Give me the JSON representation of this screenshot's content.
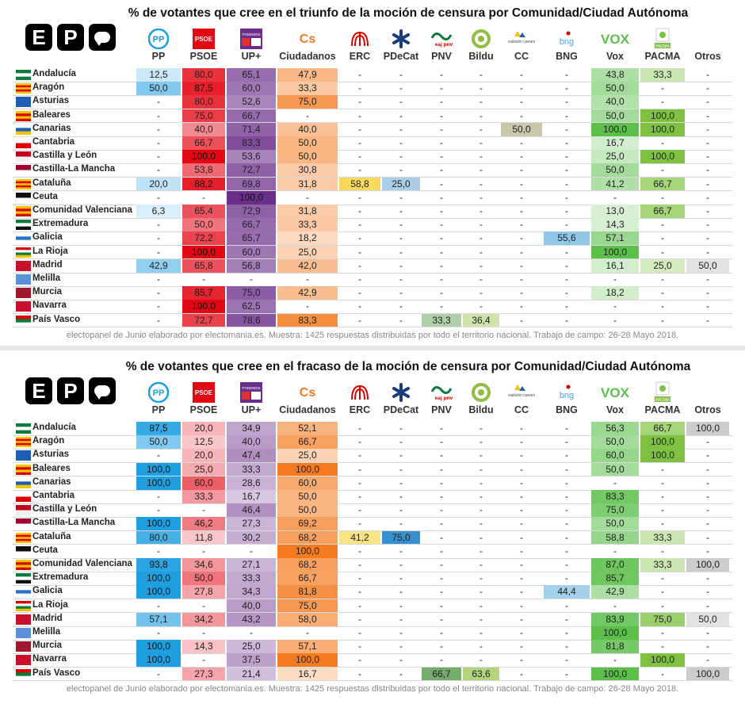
{
  "chart_data": [
    {
      "type": "table",
      "title": "% de votantes que cree en el triunfo de la moción de censura por Comunidad/Ciudad Autónoma",
      "footer": "electopanel de Junio elaborado por electomania.es. Muestra: 1425 respuestas distribuidas por todo el territorio nacional. Trabajo de campo: 26-28 Mayo 2018.",
      "columns": [
        "PP",
        "PSOE",
        "UP+",
        "Ciudadanos",
        "ERC",
        "PDeCat",
        "PNV",
        "Bildu",
        "CC",
        "BNG",
        "Vox",
        "PACMA",
        "Otros"
      ],
      "rows": [
        {
          "name": "Andalucía",
          "values": [
            "12,5",
            "80,0",
            "65,1",
            "47,9",
            "-",
            "-",
            "-",
            "-",
            "-",
            "-",
            "43,8",
            "33,3",
            "-"
          ]
        },
        {
          "name": "Aragón",
          "values": [
            "50,0",
            "87,5",
            "60,0",
            "33,3",
            "-",
            "-",
            "-",
            "-",
            "-",
            "-",
            "50,0",
            "-",
            "-"
          ]
        },
        {
          "name": "Asturias",
          "values": [
            "-",
            "80,0",
            "52,6",
            "75,0",
            "-",
            "-",
            "-",
            "-",
            "-",
            "-",
            "40,0",
            "-",
            "-"
          ]
        },
        {
          "name": "Baleares",
          "values": [
            "-",
            "75,0",
            "66,7",
            "-",
            "-",
            "-",
            "-",
            "-",
            "-",
            "-",
            "50,0",
            "100,0",
            "-"
          ]
        },
        {
          "name": "Canarias",
          "values": [
            "-",
            "40,0",
            "71,4",
            "40,0",
            "-",
            "-",
            "-",
            "-",
            "50,0",
            "-",
            "100,0",
            "100,0",
            "-"
          ]
        },
        {
          "name": "Cantabria",
          "values": [
            "-",
            "66,7",
            "83,3",
            "50,0",
            "-",
            "-",
            "-",
            "-",
            "-",
            "-",
            "16,7",
            "-",
            "-"
          ]
        },
        {
          "name": "Castilla y León",
          "values": [
            "-",
            "100,0",
            "53,6",
            "50,0",
            "-",
            "-",
            "-",
            "-",
            "-",
            "-",
            "25,0",
            "100,0",
            "-"
          ]
        },
        {
          "name": "Castilla-La Mancha",
          "values": [
            "-",
            "53,8",
            "72,7",
            "30,8",
            "-",
            "-",
            "-",
            "-",
            "-",
            "-",
            "50,0",
            "-",
            "-"
          ]
        },
        {
          "name": "Cataluña",
          "values": [
            "20,0",
            "88,2",
            "69,8",
            "31,8",
            "58,8",
            "25,0",
            "-",
            "-",
            "-",
            "-",
            "41,2",
            "66,7",
            "-"
          ]
        },
        {
          "name": "Ceuta",
          "values": [
            "-",
            "-",
            "100,0",
            "-",
            "-",
            "-",
            "-",
            "-",
            "-",
            "-",
            "-",
            "-",
            "-"
          ]
        },
        {
          "name": "Comunidad Valenciana",
          "values": [
            "6,3",
            "65,4",
            "72,9",
            "31,8",
            "-",
            "-",
            "-",
            "-",
            "-",
            "-",
            "13,0",
            "66,7",
            "-"
          ]
        },
        {
          "name": "Extremadura",
          "values": [
            "-",
            "50,0",
            "66,7",
            "33,3",
            "-",
            "-",
            "-",
            "-",
            "-",
            "-",
            "14,3",
            "-",
            "-"
          ]
        },
        {
          "name": "Galicia",
          "values": [
            "-",
            "72,2",
            "65,7",
            "18,2",
            "-",
            "-",
            "-",
            "-",
            "-",
            "55,6",
            "57,1",
            "-",
            "-"
          ]
        },
        {
          "name": "La Rioja",
          "values": [
            "-",
            "100,0",
            "60,0",
            "25,0",
            "-",
            "-",
            "-",
            "-",
            "-",
            "-",
            "100,0",
            "-",
            "-"
          ]
        },
        {
          "name": "Madrid",
          "values": [
            "42,9",
            "65,8",
            "56,8",
            "42,0",
            "-",
            "-",
            "-",
            "-",
            "-",
            "-",
            "16,1",
            "25,0",
            "50,0"
          ]
        },
        {
          "name": "Melilla",
          "values": [
            "-",
            "-",
            "-",
            "-",
            "-",
            "-",
            "-",
            "-",
            "-",
            "-",
            "-",
            "-",
            "-"
          ]
        },
        {
          "name": "Murcia",
          "values": [
            "-",
            "85,7",
            "75,0",
            "42,9",
            "-",
            "-",
            "-",
            "-",
            "-",
            "-",
            "18,2",
            "-",
            "-"
          ]
        },
        {
          "name": "Navarra",
          "values": [
            "-",
            "100,0",
            "62,5",
            "-",
            "-",
            "-",
            "-",
            "-",
            "-",
            "-",
            "-",
            "-",
            "-"
          ]
        },
        {
          "name": "País Vasco",
          "values": [
            "-",
            "72,7",
            "78,6",
            "83,3",
            "-",
            "-",
            "33,3",
            "36,4",
            "-",
            "-",
            "-",
            "-",
            "-"
          ]
        }
      ]
    },
    {
      "type": "table",
      "title": "% de votantes que cree en el fracaso de la moción de censura por Comunidad/Ciudad Autónoma",
      "footer": "electopanel de Junio elaborado por electomania.es. Muestra: 1425 respuestas distribuidas por todo el territorio nacional. Trabajo de campo: 26-28 Mayo 2018.",
      "columns": [
        "PP",
        "PSOE",
        "UP+",
        "Ciudadanos",
        "ERC",
        "PDeCat",
        "PNV",
        "Bildu",
        "CC",
        "BNG",
        "Vox",
        "PACMA",
        "Otros"
      ],
      "rows": [
        {
          "name": "Andalucía",
          "values": [
            "87,5",
            "20,0",
            "34,9",
            "52,1",
            "-",
            "-",
            "-",
            "-",
            "-",
            "-",
            "56,3",
            "66,7",
            "100,0"
          ]
        },
        {
          "name": "Aragón",
          "values": [
            "50,0",
            "12,5",
            "40,0",
            "66,7",
            "-",
            "-",
            "-",
            "-",
            "-",
            "-",
            "50,0",
            "100,0",
            "-"
          ]
        },
        {
          "name": "Asturias",
          "values": [
            "-",
            "20,0",
            "47,4",
            "25,0",
            "-",
            "-",
            "-",
            "-",
            "-",
            "-",
            "60,0",
            "100,0",
            "-"
          ]
        },
        {
          "name": "Baleares",
          "values": [
            "100,0",
            "25,0",
            "33,3",
            "100,0",
            "-",
            "-",
            "-",
            "-",
            "-",
            "-",
            "50,0",
            "-",
            "-"
          ]
        },
        {
          "name": "Canarias",
          "values": [
            "100,0",
            "60,0",
            "28,6",
            "60,0",
            "-",
            "-",
            "-",
            "-",
            "-",
            "-",
            "-",
            "-",
            "-"
          ]
        },
        {
          "name": "Cantabria",
          "values": [
            "-",
            "33,3",
            "16,7",
            "50,0",
            "-",
            "-",
            "-",
            "-",
            "-",
            "-",
            "83,3",
            "-",
            "-"
          ]
        },
        {
          "name": "Castilla y León",
          "values": [
            "-",
            "-",
            "46,4",
            "50,0",
            "-",
            "-",
            "-",
            "-",
            "-",
            "-",
            "75,0",
            "-",
            "-"
          ]
        },
        {
          "name": "Castilla-La Mancha",
          "values": [
            "100,0",
            "46,2",
            "27,3",
            "69,2",
            "-",
            "-",
            "-",
            "-",
            "-",
            "-",
            "50,0",
            "-",
            "-"
          ]
        },
        {
          "name": "Cataluña",
          "values": [
            "80,0",
            "11,8",
            "30,2",
            "68,2",
            "41,2",
            "75,0",
            "-",
            "-",
            "-",
            "-",
            "58,8",
            "33,3",
            "-"
          ]
        },
        {
          "name": "Ceuta",
          "values": [
            "-",
            "-",
            "-",
            "100,0",
            "-",
            "-",
            "-",
            "-",
            "-",
            "-",
            "-",
            "-",
            "-"
          ]
        },
        {
          "name": "Comunidad Valenciana",
          "values": [
            "93,8",
            "34,6",
            "27,1",
            "68,2",
            "-",
            "-",
            "-",
            "-",
            "-",
            "-",
            "87,0",
            "33,3",
            "100,0"
          ]
        },
        {
          "name": "Extremadura",
          "values": [
            "100,0",
            "50,0",
            "33,3",
            "66,7",
            "-",
            "-",
            "-",
            "-",
            "-",
            "-",
            "85,7",
            "-",
            "-"
          ]
        },
        {
          "name": "Galicia",
          "values": [
            "100,0",
            "27,8",
            "34,3",
            "81,8",
            "-",
            "-",
            "-",
            "-",
            "-",
            "44,4",
            "42,9",
            "-",
            "-"
          ]
        },
        {
          "name": "La Rioja",
          "values": [
            "-",
            "-",
            "40,0",
            "75,0",
            "-",
            "-",
            "-",
            "-",
            "-",
            "-",
            "-",
            "-",
            "-"
          ]
        },
        {
          "name": "Madrid",
          "values": [
            "57,1",
            "34,2",
            "43,2",
            "58,0",
            "-",
            "-",
            "-",
            "-",
            "-",
            "-",
            "83,9",
            "75,0",
            "50,0"
          ]
        },
        {
          "name": "Melilla",
          "values": [
            "-",
            "-",
            "-",
            "-",
            "-",
            "-",
            "-",
            "-",
            "-",
            "-",
            "100,0",
            "-",
            "-"
          ]
        },
        {
          "name": "Murcia",
          "values": [
            "100,0",
            "14,3",
            "25,0",
            "57,1",
            "-",
            "-",
            "-",
            "-",
            "-",
            "-",
            "81,8",
            "-",
            "-"
          ]
        },
        {
          "name": "Navarra",
          "values": [
            "100,0",
            "-",
            "37,5",
            "100,0",
            "-",
            "-",
            "-",
            "-",
            "-",
            "-",
            "-",
            "100,0",
            "-"
          ]
        },
        {
          "name": "País Vasco",
          "values": [
            "-",
            "27,3",
            "21,4",
            "16,7",
            "-",
            "-",
            "66,7",
            "63,6",
            "-",
            "-",
            "100,0",
            "-",
            "100,0"
          ]
        }
      ]
    }
  ],
  "logo_letters": [
    "E",
    "P"
  ],
  "party_logo_text": {
    "psoe": "PSOE",
    "cs": "Cs",
    "vox": "VOX",
    "pacma": "PACMA",
    "bng": "bng",
    "pnv": "eaj pnv",
    "cc": "coalición canaria",
    "up": "PODEMOS"
  },
  "party_colors": {
    "PP": "#1e9fe0",
    "PSOE": "#e30613",
    "UP+": "#6b2e8a",
    "Ciudadanos": "#f47b20",
    "ERC": "#f5c400",
    "PDeCat": "#0070c0",
    "PNV": "#3a8a2e",
    "Bildu": "#8fbf3f",
    "CC": "#a39b6b",
    "BNG": "#4aa3d8",
    "Vox": "#5bbf4a",
    "PACMA": "#7fc241",
    "Otros": "#cccccc"
  }
}
